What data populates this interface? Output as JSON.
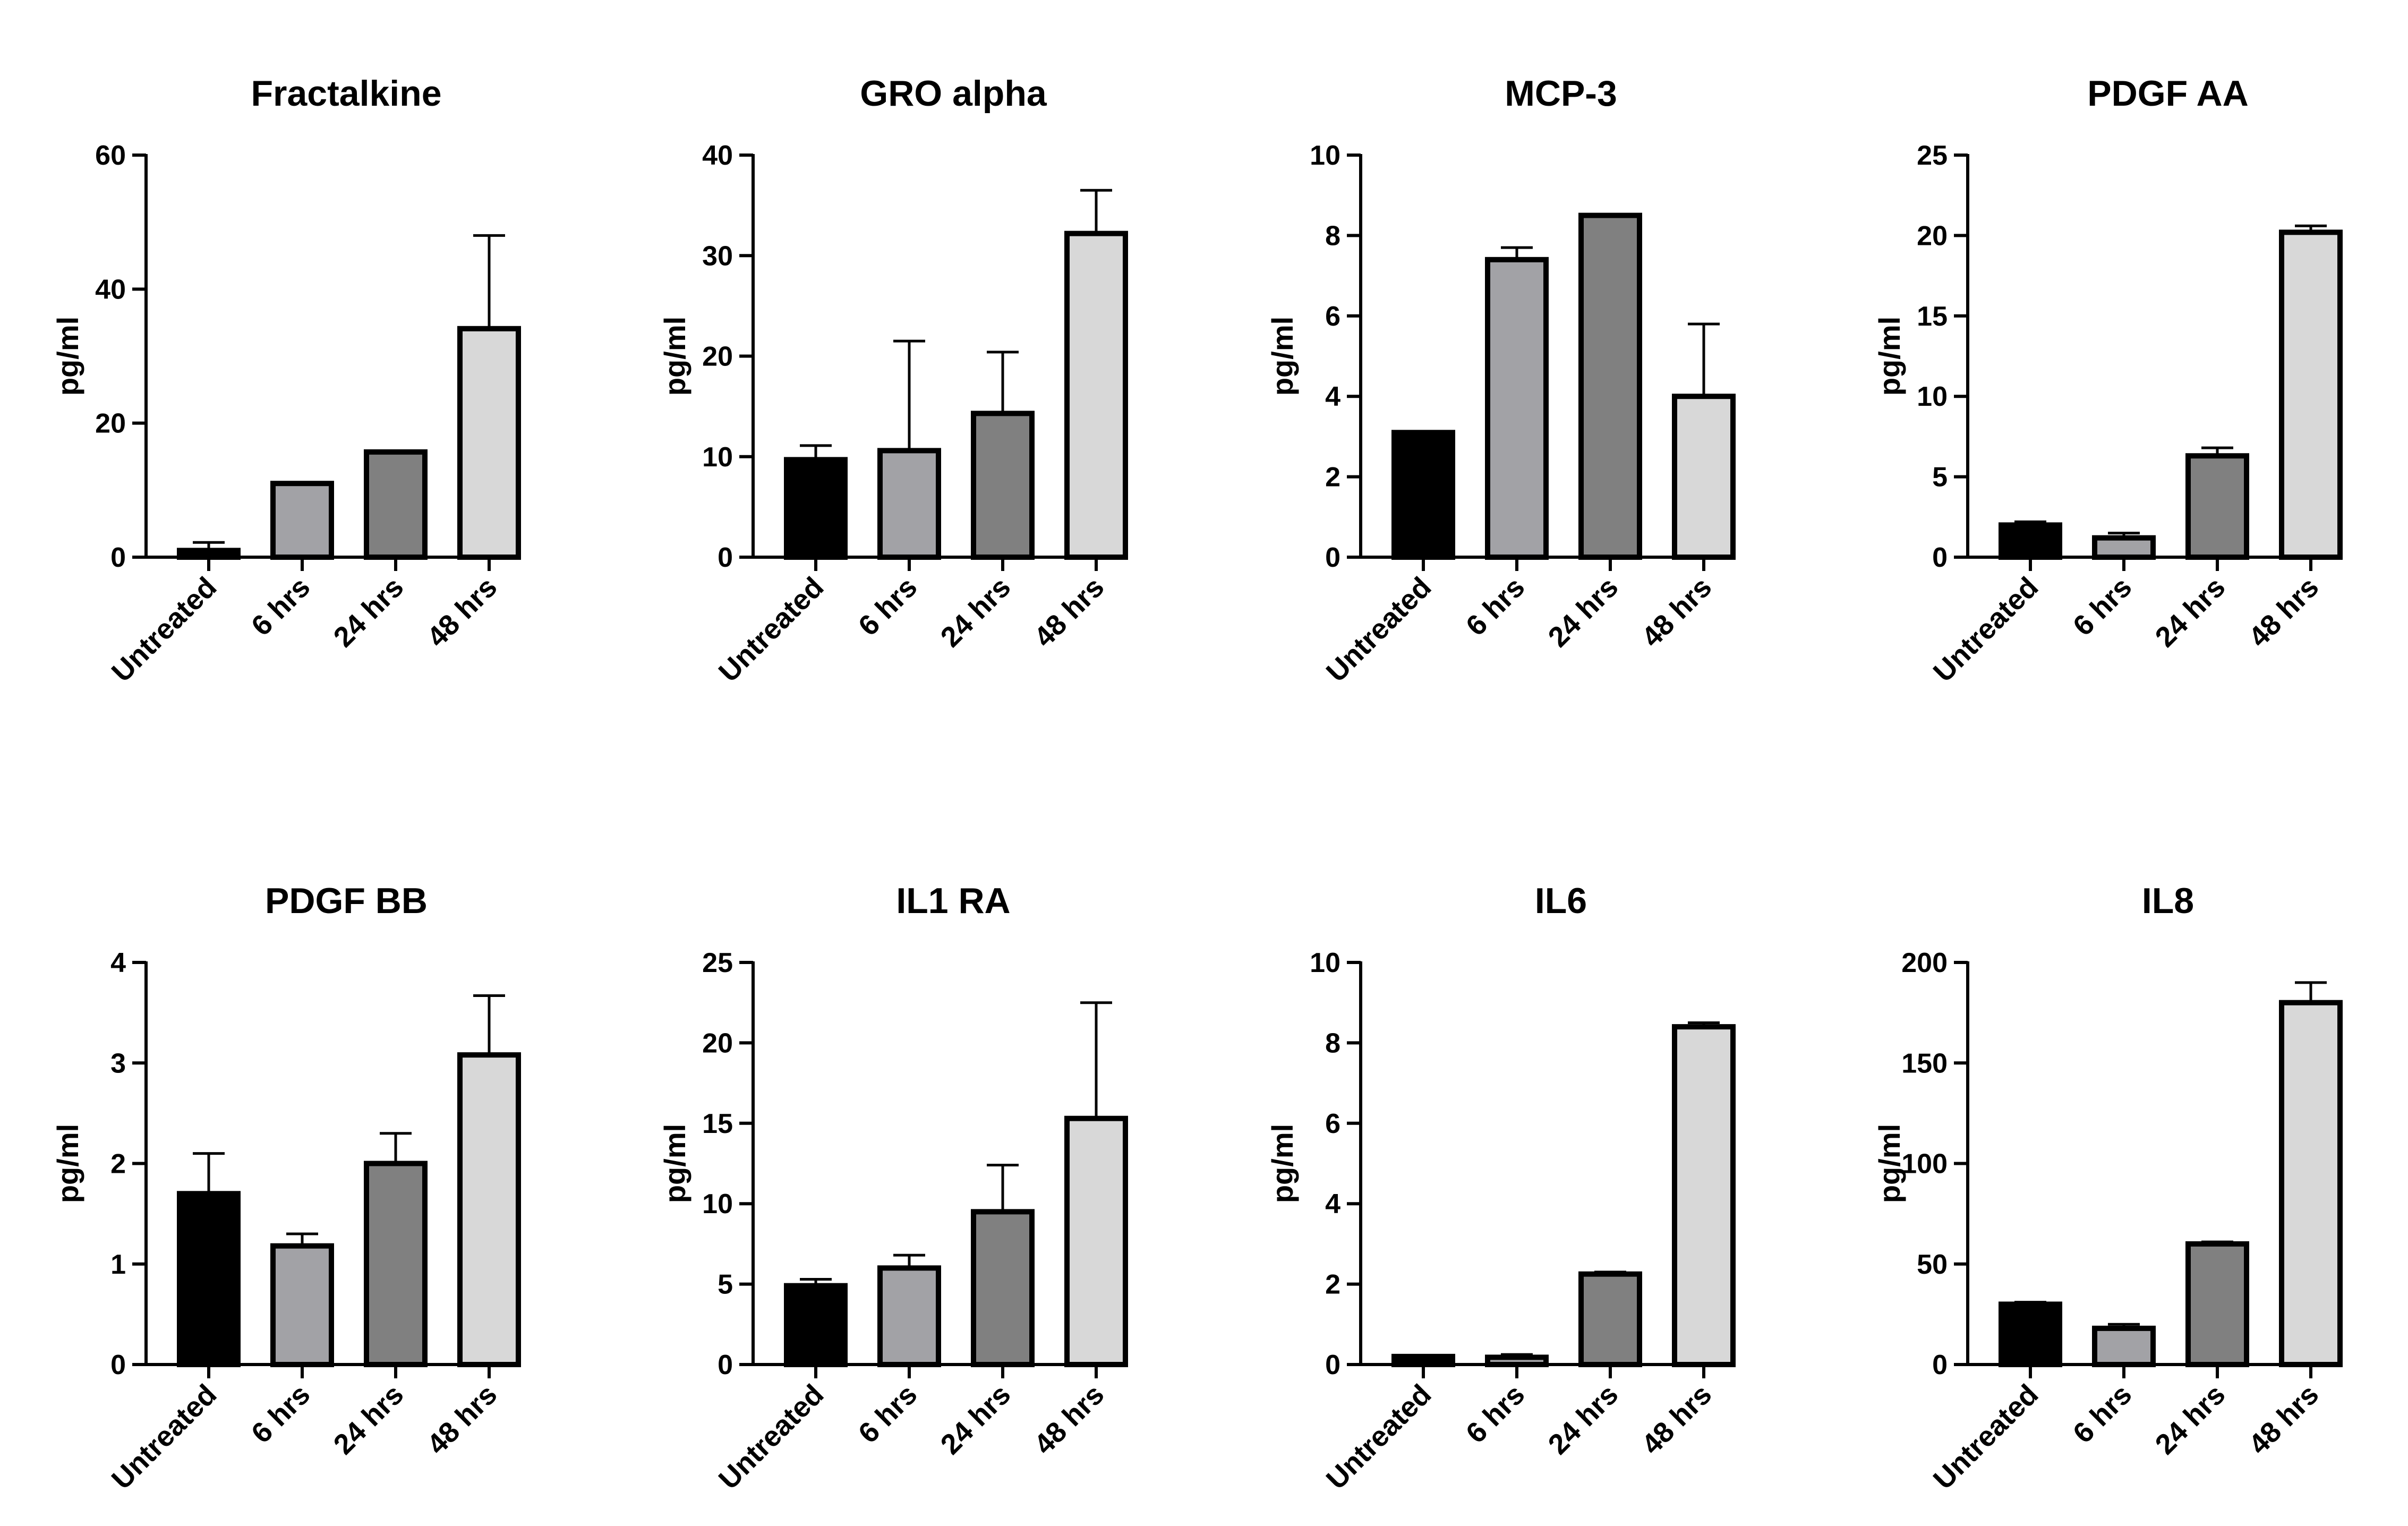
{
  "chart_data": [
    {
      "type": "bar",
      "title": "Fractalkine",
      "ylabel": "pg/ml",
      "categories": [
        "Untreated",
        "6 hrs",
        "24 hrs",
        "48 hrs"
      ],
      "values": [
        1.0,
        11.0,
        15.7,
        34.1
      ],
      "error_upper": [
        2.2,
        null,
        null,
        48.0
      ],
      "ylim": [
        0,
        60
      ],
      "yticks": [
        0,
        20,
        40,
        60
      ],
      "colors": [
        "#000000",
        "#a2a2a6",
        "#808080",
        "#d8d8d8"
      ]
    },
    {
      "type": "bar",
      "title": "GRO alpha",
      "ylabel": "pg/ml",
      "categories": [
        "Untreated",
        "6 hrs",
        "24 hrs",
        "48 hrs"
      ],
      "values": [
        9.7,
        10.6,
        14.3,
        32.2
      ],
      "error_upper": [
        11.1,
        21.5,
        20.4,
        36.5
      ],
      "ylim": [
        0,
        40
      ],
      "yticks": [
        0,
        10,
        20,
        30,
        40
      ],
      "colors": [
        "#000000",
        "#a2a2a6",
        "#808080",
        "#d8d8d8"
      ]
    },
    {
      "type": "bar",
      "title": "MCP-3",
      "ylabel": "pg/ml",
      "categories": [
        "Untreated",
        "6 hrs",
        "24 hrs",
        "48 hrs"
      ],
      "values": [
        3.1,
        7.4,
        8.5,
        4.0
      ],
      "error_upper": [
        null,
        7.7,
        null,
        5.8
      ],
      "ylim": [
        0,
        10
      ],
      "yticks": [
        0,
        2,
        4,
        6,
        8,
        10
      ],
      "colors": [
        "#000000",
        "#a2a2a6",
        "#808080",
        "#d8d8d8"
      ]
    },
    {
      "type": "bar",
      "title": "PDGF AA",
      "ylabel": "pg/ml",
      "categories": [
        "Untreated",
        "6 hrs",
        "24 hrs",
        "48 hrs"
      ],
      "values": [
        2.0,
        1.2,
        6.3,
        20.2
      ],
      "error_upper": [
        2.2,
        1.5,
        6.8,
        20.6
      ],
      "ylim": [
        0,
        25
      ],
      "yticks": [
        0,
        5,
        10,
        15,
        20,
        25
      ],
      "colors": [
        "#000000",
        "#a2a2a6",
        "#808080",
        "#d8d8d8"
      ]
    },
    {
      "type": "bar",
      "title": "PDGF BB",
      "ylabel": "pg/ml",
      "categories": [
        "Untreated",
        "6 hrs",
        "24 hrs",
        "48 hrs"
      ],
      "values": [
        1.7,
        1.18,
        2.0,
        3.08
      ],
      "error_upper": [
        2.1,
        1.3,
        2.3,
        3.67
      ],
      "ylim": [
        0,
        4
      ],
      "yticks": [
        0,
        1,
        2,
        3,
        4
      ],
      "colors": [
        "#000000",
        "#a2a2a6",
        "#808080",
        "#d8d8d8"
      ]
    },
    {
      "type": "bar",
      "title": "IL1 RA",
      "ylabel": "pg/ml",
      "categories": [
        "Untreated",
        "6 hrs",
        "24 hrs",
        "48 hrs"
      ],
      "values": [
        4.9,
        6.0,
        9.5,
        15.3
      ],
      "error_upper": [
        5.3,
        6.8,
        12.4,
        22.5
      ],
      "ylim": [
        0,
        25
      ],
      "yticks": [
        0,
        5,
        10,
        15,
        20,
        25
      ],
      "colors": [
        "#000000",
        "#a2a2a6",
        "#808080",
        "#d8d8d8"
      ]
    },
    {
      "type": "bar",
      "title": "IL6",
      "ylabel": "pg/ml",
      "categories": [
        "Untreated",
        "6 hrs",
        "24 hrs",
        "48 hrs"
      ],
      "values": [
        0.2,
        0.18,
        2.25,
        8.4
      ],
      "error_upper": [
        null,
        0.25,
        2.3,
        8.5
      ],
      "ylim": [
        0,
        10
      ],
      "yticks": [
        0,
        2,
        4,
        6,
        8,
        10
      ],
      "colors": [
        "#000000",
        "#a2a2a6",
        "#808080",
        "#d8d8d8"
      ]
    },
    {
      "type": "bar",
      "title": "IL8",
      "ylabel": "pg/ml",
      "categories": [
        "Untreated",
        "6 hrs",
        "24 hrs",
        "48 hrs"
      ],
      "values": [
        30,
        18,
        60,
        180
      ],
      "error_upper": [
        31,
        20,
        61,
        190
      ],
      "ylim": [
        0,
        200
      ],
      "yticks": [
        0,
        50,
        100,
        150,
        200
      ],
      "colors": [
        "#000000",
        "#a2a2a6",
        "#808080",
        "#d8d8d8"
      ]
    }
  ]
}
